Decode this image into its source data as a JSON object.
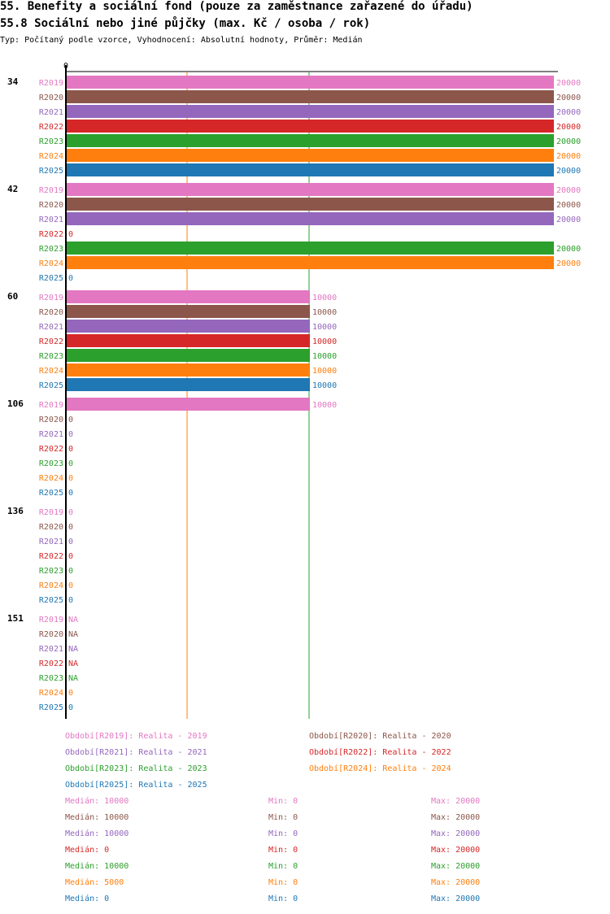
{
  "header": {
    "title": "55. Benefity a sociální fond (pouze za zaměstnance zařazené do úřadu)",
    "subtitle": "55.8 Sociální nebo jiné půjčky (max. Kč / osoba / rok)",
    "meta": "Typ: Počítaný podle vzorce, Vyhodnocení: Absolutní hodnoty, Průměr: Medián"
  },
  "colors": {
    "R2019": "#e377c2",
    "R2020": "#8c564b",
    "R2021": "#9467bd",
    "R2022": "#d62728",
    "R2023": "#2ca02c",
    "R2024": "#ff7f0e",
    "R2025": "#1f77b4"
  },
  "chart_data": {
    "type": "bar",
    "orientation": "horizontal",
    "title": "55.8 Sociální nebo jiné půjčky (max. Kč / osoba / rok)",
    "axis_zero_label": "0",
    "xlim": [
      0,
      20000
    ],
    "reference_lines": [
      {
        "name": "R2024 median",
        "value": 5000,
        "color": "#ff7f0e"
      },
      {
        "name": "median",
        "value": 10000,
        "color": "#2ca02c"
      }
    ],
    "series_names": [
      "R2019",
      "R2020",
      "R2021",
      "R2022",
      "R2023",
      "R2024",
      "R2025"
    ],
    "groups": [
      {
        "label": "34",
        "values": [
          20000,
          20000,
          20000,
          20000,
          20000,
          20000,
          20000
        ],
        "value_labels": [
          "20000",
          "20000",
          "20000",
          "20000",
          "20000",
          "20000",
          "20000"
        ]
      },
      {
        "label": "42",
        "values": [
          20000,
          20000,
          20000,
          0,
          20000,
          20000,
          0
        ],
        "value_labels": [
          "20000",
          "20000",
          "20000",
          "0",
          "20000",
          "20000",
          "0"
        ]
      },
      {
        "label": "60",
        "values": [
          10000,
          10000,
          10000,
          10000,
          10000,
          10000,
          10000
        ],
        "value_labels": [
          "10000",
          "10000",
          "10000",
          "10000",
          "10000",
          "10000",
          "10000"
        ]
      },
      {
        "label": "106",
        "values": [
          10000,
          0,
          0,
          0,
          0,
          0,
          0
        ],
        "value_labels": [
          "10000",
          "0",
          "0",
          "0",
          "0",
          "0",
          "0"
        ]
      },
      {
        "label": "136",
        "values": [
          0,
          0,
          0,
          0,
          0,
          0,
          0
        ],
        "value_labels": [
          "0",
          "0",
          "0",
          "0",
          "0",
          "0",
          "0"
        ]
      },
      {
        "label": "151",
        "values": [
          null,
          null,
          null,
          null,
          null,
          0,
          0
        ],
        "value_labels": [
          "NA",
          "NA",
          "NA",
          "NA",
          "NA",
          "0",
          "0"
        ]
      }
    ]
  },
  "legend": [
    {
      "series": "R2019",
      "text": "Období[R2019]: Realita - 2019"
    },
    {
      "series": "R2020",
      "text": "Období[R2020]: Realita - 2020"
    },
    {
      "series": "R2021",
      "text": "Období[R2021]: Realita - 2021"
    },
    {
      "series": "R2022",
      "text": "Období[R2022]: Realita - 2022"
    },
    {
      "series": "R2023",
      "text": "Období[R2023]: Realita - 2023"
    },
    {
      "series": "R2024",
      "text": "Období[R2024]: Realita - 2024"
    },
    {
      "series": "R2025",
      "text": "Období[R2025]: Realita - 2025"
    }
  ],
  "stats": [
    {
      "series": "R2019",
      "median": "Medián: 10000",
      "min": "Min: 0",
      "max": "Max: 20000"
    },
    {
      "series": "R2020",
      "median": "Medián: 10000",
      "min": "Min: 0",
      "max": "Max: 20000"
    },
    {
      "series": "R2021",
      "median": "Medián: 10000",
      "min": "Min: 0",
      "max": "Max: 20000"
    },
    {
      "series": "R2022",
      "median": "Medián: 0",
      "min": "Min: 0",
      "max": "Max: 20000"
    },
    {
      "series": "R2023",
      "median": "Medián: 10000",
      "min": "Min: 0",
      "max": "Max: 20000"
    },
    {
      "series": "R2024",
      "median": "Medián: 5000",
      "min": "Min: 0",
      "max": "Max: 20000"
    },
    {
      "series": "R2025",
      "median": "Medián: 0",
      "min": "Min: 0",
      "max": "Max: 20000"
    }
  ]
}
